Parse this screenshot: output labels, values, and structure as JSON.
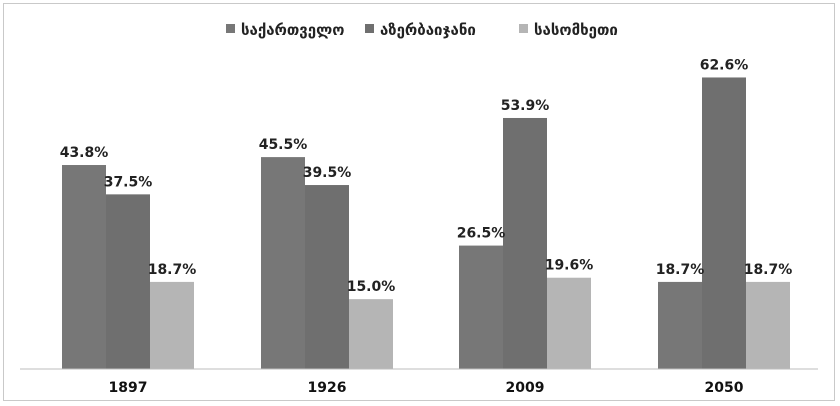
{
  "chart_data": {
    "type": "bar",
    "categories": [
      "1897",
      "1926",
      "2009",
      "2050"
    ],
    "series": [
      {
        "name": "საქართველო",
        "color": "#777777",
        "values": [
          43.8,
          45.5,
          26.5,
          18.7
        ],
        "labels": [
          "43.8%",
          "45.5%",
          "26.5%",
          "18.7%"
        ]
      },
      {
        "name": "აზერბაიჯანი",
        "color": "#6f6f6f",
        "values": [
          37.5,
          39.5,
          53.9,
          62.6
        ],
        "labels": [
          "37.5%",
          "39.5%",
          "53.9%",
          "62.6%"
        ]
      },
      {
        "name": "სასომხეთი",
        "color": "#b5b5b5",
        "values": [
          18.7,
          15.0,
          19.6,
          18.7
        ],
        "labels": [
          "18.7%",
          "15.0%",
          "19.6%",
          "18.7%"
        ]
      }
    ],
    "ylim": [
      0,
      70
    ],
    "grid": false,
    "legend": "top-center"
  }
}
